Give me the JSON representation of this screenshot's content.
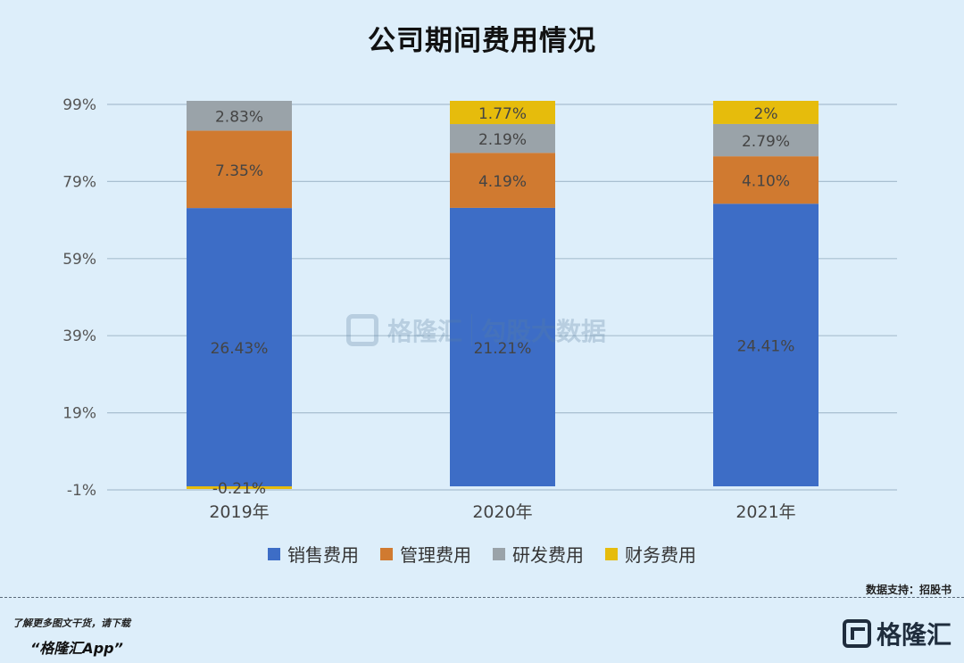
{
  "chart_data": {
    "type": "bar",
    "stacked": true,
    "title": "公司期间费用情况",
    "categories": [
      "2019年",
      "2020年",
      "2021年"
    ],
    "series": [
      {
        "name": "销售费用",
        "color": "#3d6dc6",
        "values": [
          26.43,
          21.21,
          24.41
        ],
        "labels": [
          "26.43%",
          "21.21%",
          "24.41%"
        ]
      },
      {
        "name": "管理费用",
        "color": "#d07a30",
        "values": [
          7.35,
          4.19,
          4.1
        ],
        "labels": [
          "7.35%",
          "4.19%",
          "4.10%"
        ]
      },
      {
        "name": "研发费用",
        "color": "#9aa3a9",
        "values": [
          2.83,
          2.19,
          2.79
        ],
        "labels": [
          "2.83%",
          "2.19%",
          "2.79%"
        ]
      },
      {
        "name": "财务费用",
        "color": "#e6bc0c",
        "values": [
          -0.21,
          1.77,
          2.0
        ],
        "labels": [
          "-0.21%",
          "1.77%",
          "2%"
        ]
      }
    ],
    "y_ticks": [
      "99%",
      "79%",
      "59%",
      "39%",
      "19%",
      "-1%"
    ],
    "grid": true,
    "legend_position": "bottom"
  },
  "footer": {
    "source_note": "数据支持：招股书",
    "promo_line1": "了解更多图文干货，请下载",
    "promo_line2": "“格隆汇App”",
    "logo_text": "格隆汇"
  },
  "watermark": {
    "brand": "格隆汇",
    "sub": "勾股大数据"
  }
}
